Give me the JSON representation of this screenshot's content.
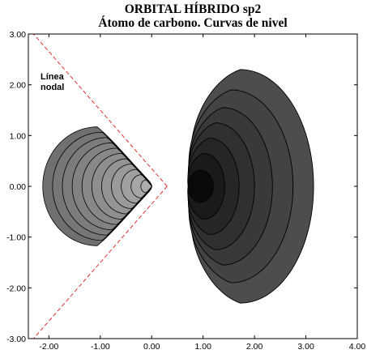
{
  "title": {
    "line1": "ORBITAL HÍBRIDO sp2",
    "line2": "Átomo de carbono. Curvas de nivel"
  },
  "annotation": {
    "line1": "Línea",
    "line2": "nodal"
  },
  "axes": {
    "x_range": [
      -2.4,
      4.0
    ],
    "y_range": [
      -3.0,
      3.0
    ],
    "x_ticks": [
      "-2.00",
      "-1.00",
      "0.00",
      "1.00",
      "2.00",
      "3.00",
      "4.00"
    ],
    "y_ticks": [
      "3.00",
      "2.00",
      "1.00",
      "0.00",
      "-1.00",
      "-2.00",
      "-3.00"
    ]
  },
  "orbital": {
    "large_lobe_center_x": 0.95,
    "small_lobe_center_x": -0.5,
    "nodal_vertex_x": 0.3
  },
  "colors": {
    "large_lobe_shades": [
      "#4d4d4d",
      "#434343",
      "#393939",
      "#303030",
      "#262626",
      "#1a1a1a",
      "#0a0a0a"
    ],
    "small_lobe_shades": [
      "#707070",
      "#767676",
      "#7c7c7c",
      "#828282",
      "#888888",
      "#8e8e8e",
      "#949494",
      "#9a9a9a",
      "#a0a0a0",
      "#a6a6a6",
      "#acacac"
    ],
    "nodal_line": "#e03030",
    "contour_stroke": "#000000"
  }
}
